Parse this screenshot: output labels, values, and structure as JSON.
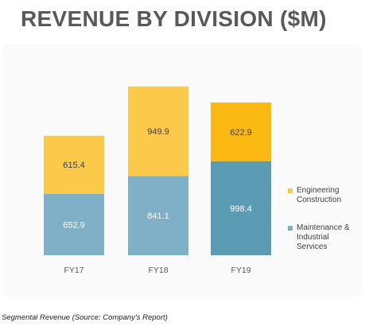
{
  "header": {
    "title": "REVENUE BY DIVISION ($M)"
  },
  "caption": "Segmental Revenue (Source: Company's Report)",
  "legend": {
    "items": [
      {
        "label": "Engineering Construction",
        "color": "#fcc94a"
      },
      {
        "label": "Maintenance & Industrial Services",
        "color": "#7fb0c8"
      }
    ]
  },
  "colors": {
    "engineering_fy17_fy18": "#fcc94a",
    "engineering_fy19": "#fcb913",
    "maintenance_fy17_fy18": "#7fb0c8",
    "maintenance_fy19": "#5b9bb3",
    "axis_label": "#595959",
    "data_label": "#404040"
  },
  "chart_data": {
    "type": "bar",
    "stacked": true,
    "title": "REVENUE BY DIVISION ($M)",
    "categories": [
      "FY17",
      "FY18",
      "FY19"
    ],
    "series": [
      {
        "name": "Maintenance & Industrial Services",
        "values": [
          652.9,
          841.1,
          998.4
        ]
      },
      {
        "name": "Engineering Construction",
        "values": [
          615.4,
          949.9,
          622.9
        ]
      }
    ],
    "ylim": [
      0,
      1800
    ],
    "grid": false,
    "legend_position": "right"
  }
}
